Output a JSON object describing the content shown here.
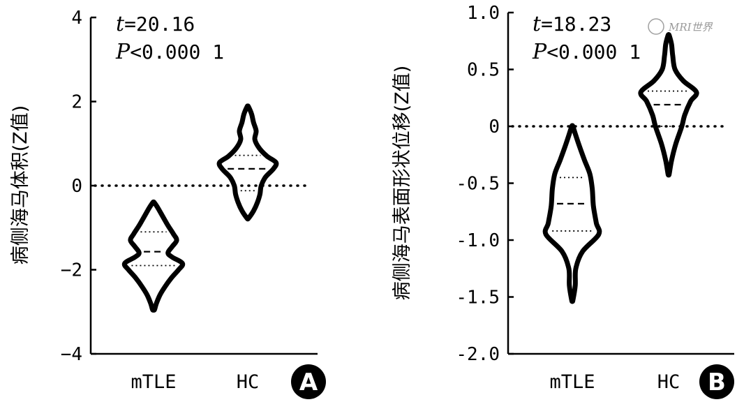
{
  "watermark": "MRI世界",
  "colors": {
    "line": "#000000",
    "badge": "#000000",
    "badge_text": "#ffffff"
  },
  "chart_data": [
    {
      "panel": "A",
      "type": "violin",
      "ylabel": "病侧海马体积(Z值)",
      "ylim": [
        -4,
        4
      ],
      "yticks": [
        "4",
        "2",
        "0",
        "−2",
        "−4"
      ],
      "ytick_values": [
        4,
        2,
        0,
        -2,
        -4
      ],
      "categories": [
        "mTLE",
        "HC"
      ],
      "stat_line1_prefix": "t",
      "stat_line1_rest": "=20.16",
      "stat_line2_prefix": "P",
      "stat_line2_rest": "<0.000 1",
      "reference_line": 0,
      "groups": [
        {
          "name": "mTLE",
          "min": -2.95,
          "max": -0.4,
          "q1": -1.9,
          "median": -1.57,
          "q3": -1.1,
          "profile": [
            [
              -2.95,
              0.03
            ],
            [
              -2.8,
              0.09
            ],
            [
              -2.6,
              0.2
            ],
            [
              -2.4,
              0.36
            ],
            [
              -2.2,
              0.55
            ],
            [
              -2.0,
              0.78
            ],
            [
              -1.85,
              0.9
            ],
            [
              -1.7,
              0.58
            ],
            [
              -1.6,
              0.45
            ],
            [
              -1.45,
              0.58
            ],
            [
              -1.3,
              0.72
            ],
            [
              -1.15,
              0.62
            ],
            [
              -0.95,
              0.45
            ],
            [
              -0.75,
              0.3
            ],
            [
              -0.55,
              0.15
            ],
            [
              -0.4,
              0.02
            ]
          ]
        },
        {
          "name": "HC",
          "min": -0.78,
          "max": 1.88,
          "q1": -0.12,
          "median": 0.4,
          "q3": 0.72,
          "profile": [
            [
              -0.78,
              0.02
            ],
            [
              -0.6,
              0.18
            ],
            [
              -0.4,
              0.3
            ],
            [
              -0.2,
              0.38
            ],
            [
              0.0,
              0.42
            ],
            [
              0.2,
              0.55
            ],
            [
              0.4,
              0.8
            ],
            [
              0.55,
              0.88
            ],
            [
              0.7,
              0.6
            ],
            [
              0.9,
              0.35
            ],
            [
              1.1,
              0.22
            ],
            [
              1.3,
              0.26
            ],
            [
              1.5,
              0.18
            ],
            [
              1.7,
              0.12
            ],
            [
              1.88,
              0.02
            ]
          ]
        }
      ]
    },
    {
      "panel": "B",
      "type": "violin",
      "ylabel": "病侧海马表面形状位移(Z值)",
      "ylim": [
        -2.0,
        1.0
      ],
      "yticks": [
        "1.0",
        "0.5",
        "0",
        "-0.5",
        "-1.0",
        "-1.5",
        "-2.0"
      ],
      "ytick_values": [
        1.0,
        0.5,
        0,
        -0.5,
        -1.0,
        -1.5,
        -2.0
      ],
      "categories": [
        "mTLE",
        "HC"
      ],
      "stat_line1_prefix": "t",
      "stat_line1_rest": "=18.23",
      "stat_line2_prefix": "P",
      "stat_line2_rest": "<0.000 1",
      "reference_line": 0,
      "groups": [
        {
          "name": "mTLE",
          "min": -1.53,
          "max": 0.0,
          "q1": -0.92,
          "median": -0.68,
          "q3": -0.45,
          "profile": [
            [
              -1.53,
              0.02
            ],
            [
              -1.4,
              0.1
            ],
            [
              -1.25,
              0.12
            ],
            [
              -1.1,
              0.35
            ],
            [
              -0.95,
              0.9
            ],
            [
              -0.85,
              0.82
            ],
            [
              -0.7,
              0.72
            ],
            [
              -0.55,
              0.68
            ],
            [
              -0.42,
              0.6
            ],
            [
              -0.3,
              0.42
            ],
            [
              -0.18,
              0.25
            ],
            [
              -0.08,
              0.12
            ],
            [
              0.0,
              0.02
            ]
          ]
        },
        {
          "name": "HC",
          "min": -0.42,
          "max": 0.8,
          "q1": 0.0,
          "median": 0.19,
          "q3": 0.31,
          "profile": [
            [
              -0.42,
              0.02
            ],
            [
              -0.3,
              0.1
            ],
            [
              -0.15,
              0.25
            ],
            [
              0.0,
              0.45
            ],
            [
              0.1,
              0.55
            ],
            [
              0.22,
              0.75
            ],
            [
              0.3,
              0.95
            ],
            [
              0.4,
              0.5
            ],
            [
              0.5,
              0.22
            ],
            [
              0.62,
              0.14
            ],
            [
              0.72,
              0.1
            ],
            [
              0.8,
              0.02
            ]
          ]
        }
      ]
    }
  ]
}
